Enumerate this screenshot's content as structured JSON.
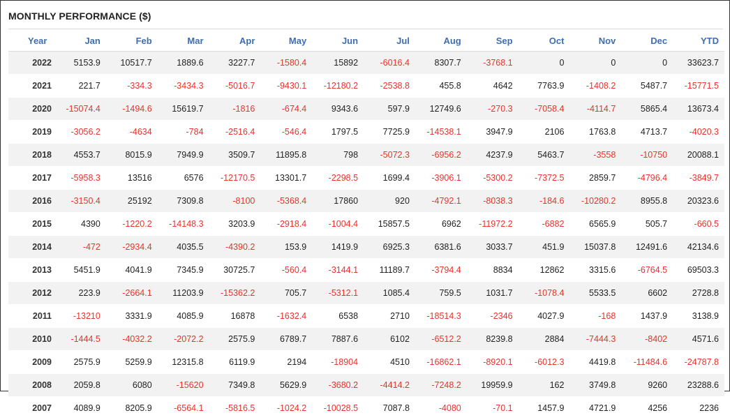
{
  "title": "MONTHLY PERFORMANCE ($)",
  "colors": {
    "header": "#3f6eb0",
    "negative": "#e8332b",
    "stripe": "#f2f2f2"
  },
  "columns": [
    "Year",
    "Jan",
    "Feb",
    "Mar",
    "Apr",
    "May",
    "Jun",
    "Jul",
    "Aug",
    "Sep",
    "Oct",
    "Nov",
    "Dec",
    "YTD"
  ],
  "rows": [
    [
      "2022",
      "5153.9",
      "10517.7",
      "1889.6",
      "3227.7",
      "-1580.4",
      "15892",
      "-6016.4",
      "8307.7",
      "-3768.1",
      "0",
      "0",
      "0",
      "33623.7"
    ],
    [
      "2021",
      "221.7",
      "-334.3",
      "-3434.3",
      "-5016.7",
      "-9430.1",
      "-12180.2",
      "-2538.8",
      "455.8",
      "4642",
      "7763.9",
      "-1408.2",
      "5487.7",
      "-15771.5"
    ],
    [
      "2020",
      "-15074.4",
      "-1494.6",
      "15619.7",
      "-1816",
      "-674.4",
      "9343.6",
      "597.9",
      "12749.6",
      "-270.3",
      "-7058.4",
      "-4114.7",
      "5865.4",
      "13673.4"
    ],
    [
      "2019",
      "-3056.2",
      "-4634",
      "-784",
      "-2516.4",
      "-546.4",
      "1797.5",
      "7725.9",
      "-14538.1",
      "3947.9",
      "2106",
      "1763.8",
      "4713.7",
      "-4020.3"
    ],
    [
      "2018",
      "4553.7",
      "8015.9",
      "7949.9",
      "3509.7",
      "11895.8",
      "798",
      "-5072.3",
      "-6956.2",
      "4237.9",
      "5463.7",
      "-3558",
      "-10750",
      "20088.1"
    ],
    [
      "2017",
      "-5958.3",
      "13516",
      "6576",
      "-12170.5",
      "13301.7",
      "-2298.5",
      "1699.4",
      "-3906.1",
      "-5300.2",
      "-7372.5",
      "2859.7",
      "-4796.4",
      "-3849.7"
    ],
    [
      "2016",
      "-3150.4",
      "25192",
      "7309.8",
      "-8100",
      "-5368.4",
      "17860",
      "920",
      "-4792.1",
      "-8038.3",
      "-184.6",
      "-10280.2",
      "8955.8",
      "20323.6"
    ],
    [
      "2015",
      "4390",
      "-1220.2",
      "-14148.3",
      "3203.9",
      "-2918.4",
      "-1004.4",
      "15857.5",
      "6962",
      "-11972.2",
      "-6882",
      "6565.9",
      "505.7",
      "-660.5"
    ],
    [
      "2014",
      "-472",
      "-2934.4",
      "4035.5",
      "-4390.2",
      "153.9",
      "1419.9",
      "6925.3",
      "6381.6",
      "3033.7",
      "451.9",
      "15037.8",
      "12491.6",
      "42134.6"
    ],
    [
      "2013",
      "5451.9",
      "4041.9",
      "7345.9",
      "30725.7",
      "-560.4",
      "-3144.1",
      "11189.7",
      "-3794.4",
      "8834",
      "12862",
      "3315.6",
      "-6764.5",
      "69503.3"
    ],
    [
      "2012",
      "223.9",
      "-2664.1",
      "11203.9",
      "-15362.2",
      "705.7",
      "-5312.1",
      "1085.4",
      "759.5",
      "1031.7",
      "-1078.4",
      "5533.5",
      "6602",
      "2728.8"
    ],
    [
      "2011",
      "-13210",
      "3331.9",
      "4085.9",
      "16878",
      "-1632.4",
      "6538",
      "2710",
      "-18514.3",
      "-2346",
      "4027.9",
      "-168",
      "1437.9",
      "3138.9"
    ],
    [
      "2010",
      "-1444.5",
      "-4032.2",
      "-2072.2",
      "2575.9",
      "6789.7",
      "7887.6",
      "6102",
      "-6512.2",
      "8239.8",
      "2884",
      "-7444.3",
      "-8402",
      "4571.6"
    ],
    [
      "2009",
      "2575.9",
      "5259.9",
      "12315.8",
      "6119.9",
      "2194",
      "-18904",
      "4510",
      "-16862.1",
      "-8920.1",
      "-6012.3",
      "4419.8",
      "-11484.6",
      "-24787.8"
    ],
    [
      "2008",
      "2059.8",
      "6080",
      "-15620",
      "7349.8",
      "5629.9",
      "-3680.2",
      "-4414.2",
      "-7248.2",
      "19959.9",
      "162",
      "3749.8",
      "9260",
      "23288.6"
    ],
    [
      "2007",
      "4089.9",
      "8205.9",
      "-6564.1",
      "-5816.5",
      "-1024.2",
      "-10028.5",
      "7087.8",
      "-4080",
      "-70.1",
      "1457.9",
      "4721.9",
      "4256",
      "2236"
    ]
  ]
}
